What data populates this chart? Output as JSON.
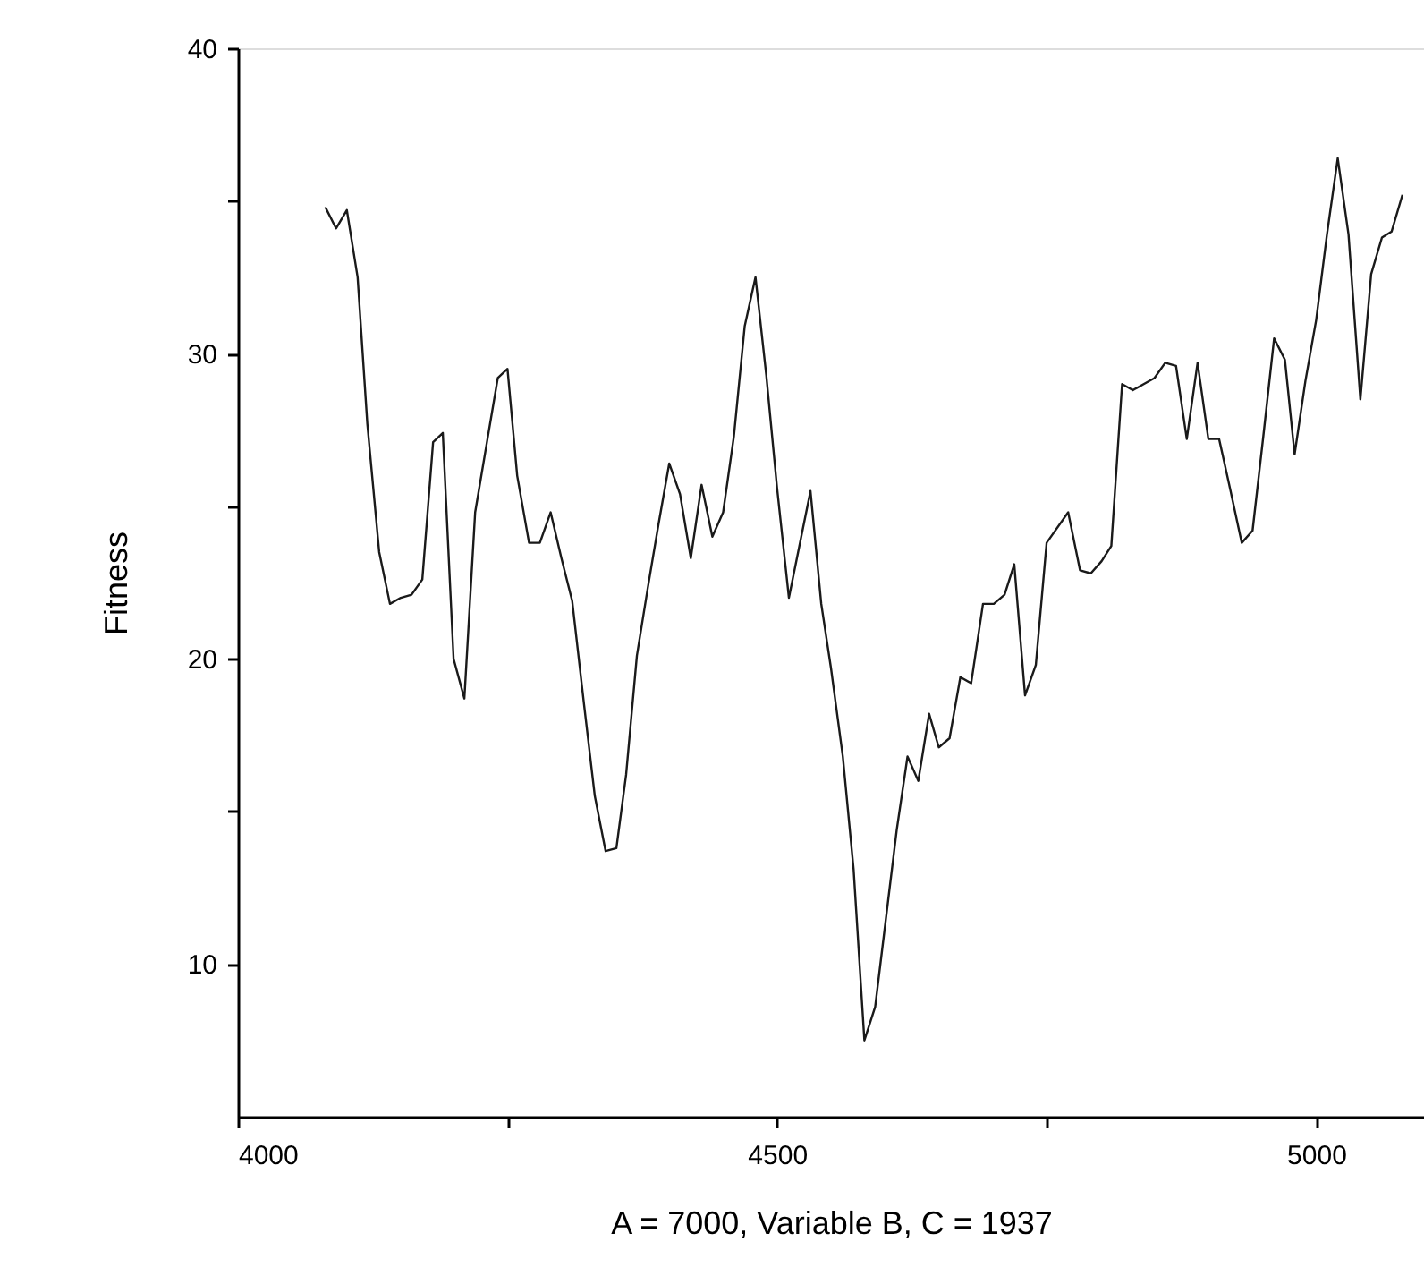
{
  "chart_data": {
    "type": "line",
    "xlabel": "A = 7000, Variable B, C = 1937",
    "ylabel": "Fitness",
    "x": [
      4081,
      4091,
      4101,
      4111,
      4120,
      4131,
      4141,
      4151,
      4161,
      4171,
      4181,
      4190,
      4200,
      4210,
      4220,
      4230,
      4241,
      4250,
      4259,
      4270,
      4280,
      4290,
      4300,
      4310,
      4321,
      4331,
      4341,
      4351,
      4360,
      4370,
      4380,
      4390,
      4400,
      4410,
      4420,
      4430,
      4440,
      4450,
      4460,
      4470,
      4480,
      4490,
      4500,
      4511,
      4531,
      4541,
      4550,
      4561,
      4571,
      4581,
      4591,
      4601,
      4611,
      4621,
      4631,
      4641,
      4650,
      4660,
      4670,
      4680,
      4691,
      4701,
      4711,
      4720,
      4730,
      4740,
      4750,
      4770,
      4781,
      4791,
      4801,
      4810,
      4820,
      4830,
      4840,
      4850,
      4860,
      4870,
      4880,
      4890,
      4900,
      4910,
      4920,
      4931,
      4941,
      4951,
      4961,
      4971,
      4980,
      4990,
      5000,
      5010,
      5020,
      5030,
      5041,
      5051,
      5061,
      5070,
      5080
    ],
    "series": [
      {
        "color": "#1a1a1a",
        "values": [
          34.8,
          34.1,
          34.7,
          32.5,
          27.7,
          23.5,
          21.8,
          22.0,
          22.1,
          22.6,
          27.1,
          27.4,
          20.0,
          18.7,
          24.8,
          26.9,
          29.2,
          29.5,
          26.0,
          23.8,
          23.8,
          24.8,
          23.3,
          21.9,
          18.5,
          15.5,
          13.7,
          13.8,
          16.2,
          20.1,
          22.3,
          24.4,
          26.4,
          25.4,
          23.3,
          25.7,
          24.0,
          24.8,
          27.3,
          30.9,
          32.5,
          29.3,
          25.6,
          22.0,
          25.5,
          21.8,
          19.7,
          16.8,
          13.1,
          7.5,
          8.6,
          11.5,
          14.4,
          16.8,
          16.0,
          18.2,
          17.1,
          17.4,
          19.4,
          19.2,
          21.8,
          21.8,
          22.1,
          23.1,
          18.8,
          19.8,
          23.8,
          24.8,
          22.9,
          22.8,
          23.2,
          23.7,
          29.0,
          28.8,
          29.0,
          29.2,
          29.7,
          29.6,
          27.2,
          29.7,
          27.2,
          27.2,
          25.6,
          23.8,
          24.2,
          27.3,
          30.5,
          29.8,
          26.7,
          29.1,
          31.1,
          33.9,
          36.4,
          33.9,
          28.5,
          32.6,
          33.8,
          34.0,
          35.2
        ]
      }
    ],
    "xlim": [
      4000,
      5100
    ],
    "xticks": [
      4000,
      {
        "value": 4250,
        "label": null
      },
      4500,
      {
        "value": 4750,
        "label": null
      },
      5000
    ],
    "ylim": [
      5,
      40
    ],
    "yticks": [
      10,
      {
        "value": 15,
        "label": null
      },
      20,
      {
        "value": 25,
        "label": null
      },
      30,
      {
        "value": 35,
        "label": null
      },
      40
    ],
    "grid": false,
    "marker": "none",
    "line_style": "solid"
  }
}
